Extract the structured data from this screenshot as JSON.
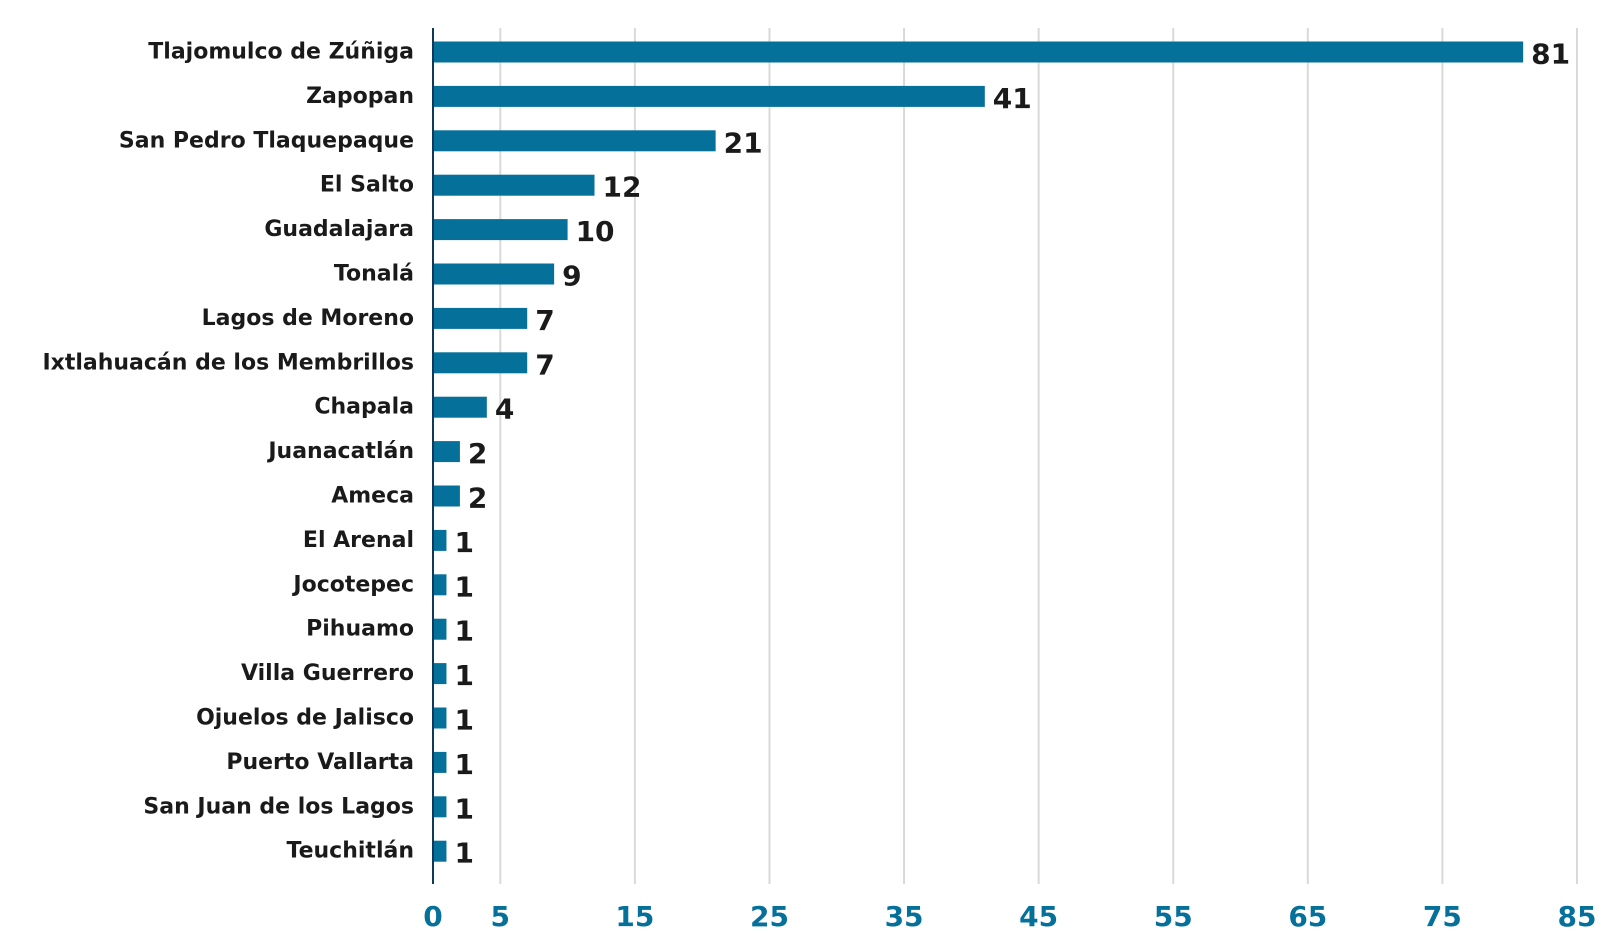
{
  "chart_data": {
    "type": "bar",
    "orientation": "horizontal",
    "categories": [
      "Tlajomulco de Zúñiga",
      "Zapopan",
      "San Pedro Tlaquepaque",
      "El Salto",
      "Guadalajara",
      "Tonalá",
      "Lagos de Moreno",
      "Ixtlahuacán de los Membrillos",
      "Chapala",
      "Juanacatlán",
      "Ameca",
      "El Arenal",
      "Jocotepec",
      "Pihuamo",
      "Villa Guerrero",
      "Ojuelos de Jalisco",
      "Puerto Vallarta",
      "San Juan de los Lagos",
      "Teuchitlán"
    ],
    "values": [
      81,
      41,
      21,
      12,
      10,
      9,
      7,
      7,
      4,
      2,
      2,
      1,
      1,
      1,
      1,
      1,
      1,
      1,
      1
    ],
    "value_labels": [
      "81",
      "41",
      "21",
      "12",
      "10",
      "9",
      "7",
      "7",
      "4",
      "2",
      "2",
      "1",
      "1",
      "1",
      "1",
      "1",
      "1",
      "1",
      "1"
    ],
    "xticks": [
      0,
      5,
      15,
      25,
      35,
      45,
      55,
      65,
      75,
      85
    ],
    "xtick_labels": [
      "0",
      "5",
      "15",
      "25",
      "35",
      "45",
      "55",
      "65",
      "75",
      "85"
    ],
    "xlim": [
      0,
      85
    ],
    "grid": true,
    "title": "",
    "xlabel": "",
    "ylabel": "",
    "colors": {
      "bar": "#05709a",
      "tick_label": "#05709a",
      "grid": "#d9d9d9",
      "axis": "#0b3a5c",
      "text": "#1a1a1a"
    }
  }
}
